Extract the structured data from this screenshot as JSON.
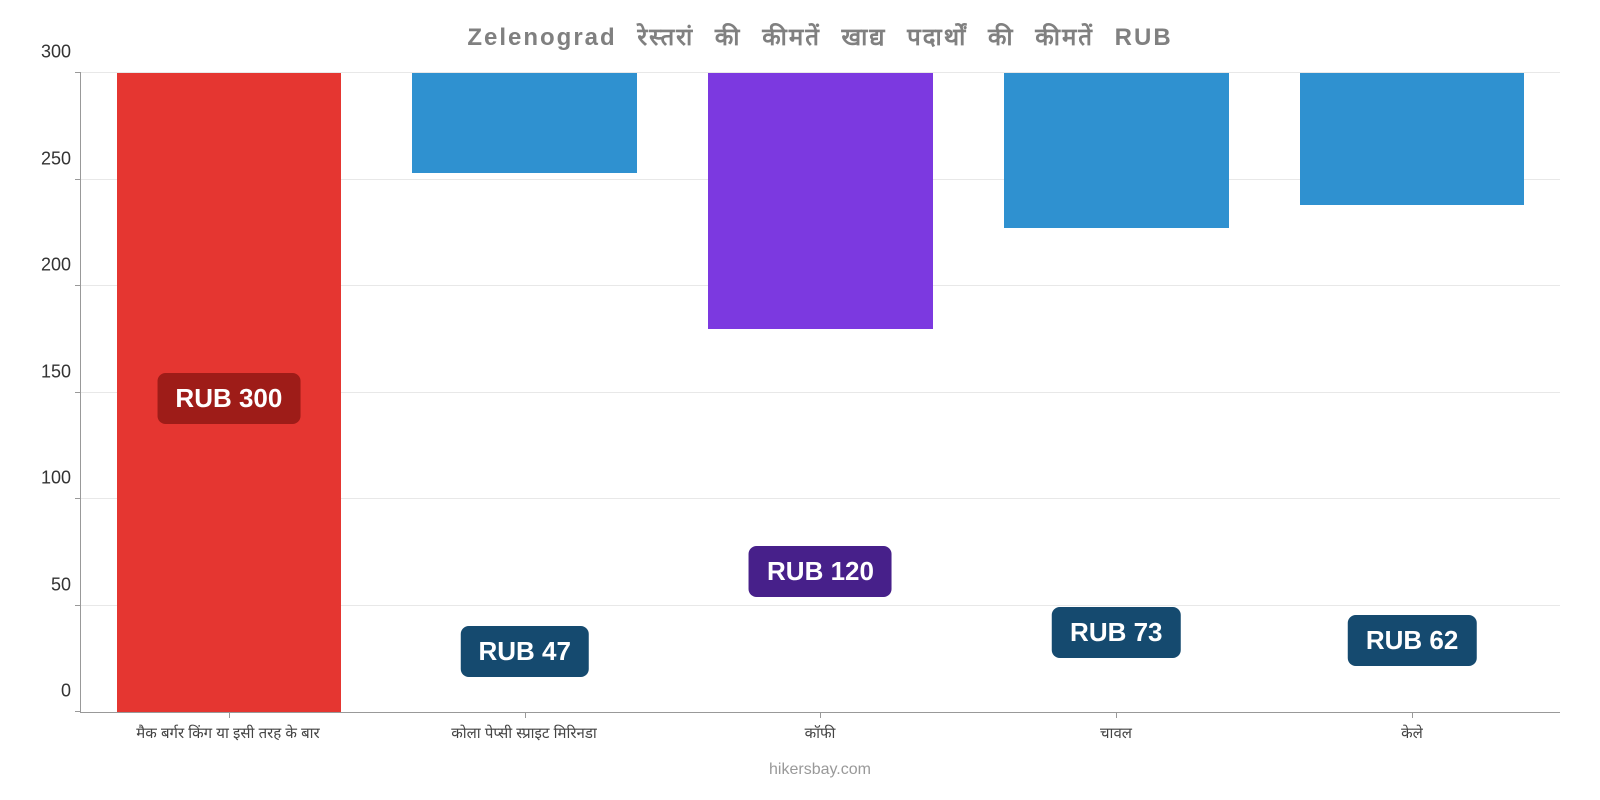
{
  "chart": {
    "type": "bar",
    "title": "Zelenograd रेस्तरां की कीमतें खाद्य पदार्थों की कीमतें RUB",
    "title_fontsize": 24,
    "title_color": "#808080",
    "background_color": "#ffffff",
    "grid_color": "#e8e8e8",
    "axis_color": "#999999",
    "ylim": [
      0,
      300
    ],
    "ytick_step": 50,
    "yticks": [
      0,
      50,
      100,
      150,
      200,
      250,
      300
    ],
    "label_fontsize": 18,
    "xlabel_fontsize": 15,
    "bar_width_pct": 76,
    "categories": [
      "मैक बर्गर किंग या इसी तरह के बार",
      "कोला पेप्सी स्प्राइट मिरिनडा",
      "कॉफी",
      "चावल",
      "केले"
    ],
    "values": [
      300,
      47,
      120,
      73,
      62
    ],
    "value_prefix": "RUB ",
    "bar_colors": [
      "#e53631",
      "#2f91d0",
      "#7c39e0",
      "#2f91d0",
      "#2f91d0"
    ],
    "badge_colors": [
      "#9e1c18",
      "#154a6f",
      "#47208a",
      "#154a6f",
      "#154a6f"
    ],
    "badge_text_color": "#ffffff",
    "badge_fontsize": 26,
    "attribution": "hikersbay.com",
    "attribution_color": "#999999"
  }
}
